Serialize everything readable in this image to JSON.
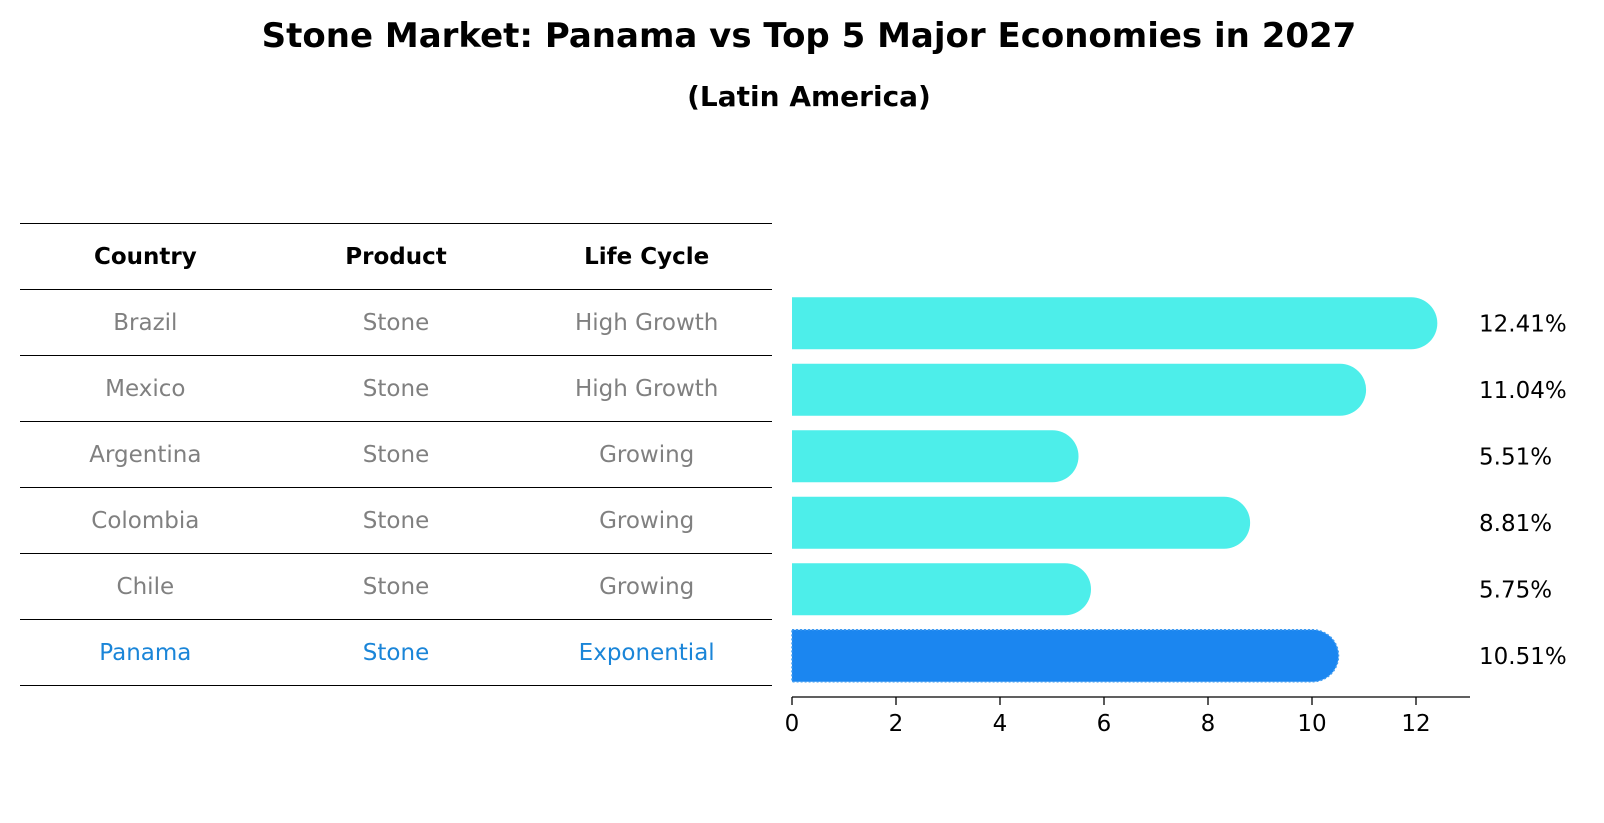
{
  "chart_data": {
    "type": "bar",
    "orientation": "horizontal",
    "title": "Stone Market: Panama vs Top 5 Major Economies in 2027",
    "subtitle": "(Latin America)",
    "table": {
      "headers": [
        "Country",
        "Product",
        "Life Cycle"
      ],
      "rows": [
        [
          "Brazil",
          "Stone",
          "High Growth"
        ],
        [
          "Mexico",
          "Stone",
          "High Growth"
        ],
        [
          "Argentina",
          "Stone",
          "Growing"
        ],
        [
          "Colombia",
          "Stone",
          "Growing"
        ],
        [
          "Chile",
          "Stone",
          "Growing"
        ],
        [
          "Panama",
          "Stone",
          "Exponential"
        ]
      ]
    },
    "categories": [
      "Brazil",
      "Mexico",
      "Argentina",
      "Colombia",
      "Chile",
      "Panama"
    ],
    "values": [
      12.41,
      11.04,
      5.51,
      8.81,
      5.75,
      10.51
    ],
    "value_labels": [
      "12.41%",
      "11.04%",
      "5.51%",
      "8.81%",
      "5.75%",
      "10.51%"
    ],
    "highlight": "Panama",
    "xlim": [
      0,
      13
    ],
    "xticks": [
      "0",
      "2",
      "4",
      "6",
      "8",
      "10",
      "12"
    ],
    "colors": {
      "bar": "#4deeea",
      "highlight_bar": "#1b86f0",
      "highlight_text": "#1a85d8",
      "muted_text": "#808080"
    }
  }
}
